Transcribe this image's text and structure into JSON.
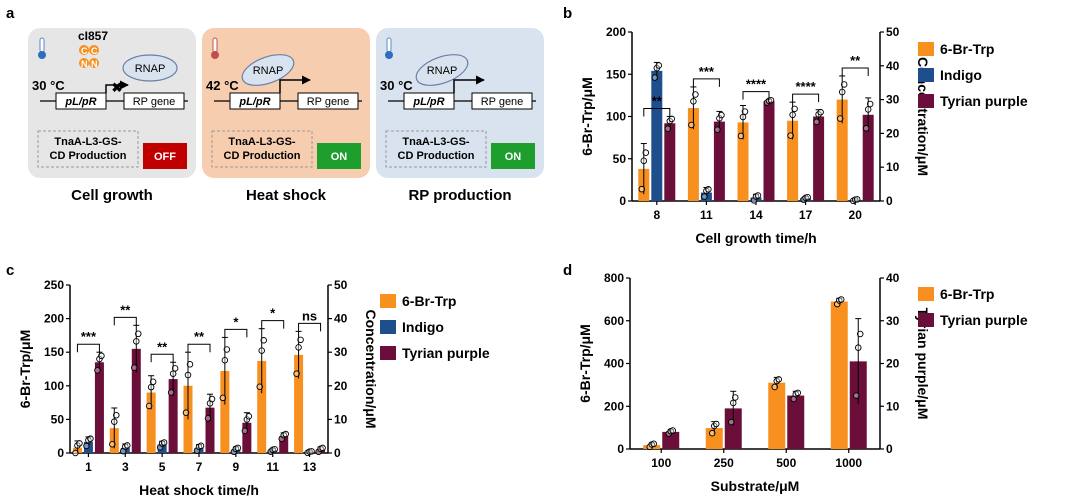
{
  "panel_labels": [
    "a",
    "b",
    "c",
    "d"
  ],
  "colors": {
    "br_trp": "#F7901E",
    "indigo": "#1F4E8C",
    "tyrian": "#6B0F3A",
    "off": "#C00000",
    "on": "#1E9E2C",
    "growth_bg": "#E6E6E6",
    "heat_bg": "#F7CDB0",
    "rp_bg": "#D9E3F0"
  },
  "diagram": {
    "states": [
      {
        "title": "Cell growth",
        "temp": "30 °C",
        "repressor": "cI857",
        "repressor_letters": [
          "C",
          "C",
          "N",
          "N"
        ],
        "rnap": "RNAP",
        "promoter": "pL/pR",
        "gene": "RP gene",
        "production": "TnaA-L3-GS-CD Production",
        "production_line1": "TnaA-L3-GS-",
        "production_line2": "CD Production",
        "switch": "OFF"
      },
      {
        "title": "Heat shock",
        "temp": "42 °C",
        "rnap": "RNAP",
        "promoter": "pL/pR",
        "gene": "RP gene",
        "production": "TnaA-L3-GS-CD Production",
        "production_line1": "TnaA-L3-GS-",
        "production_line2": "CD Production",
        "switch": "ON"
      },
      {
        "title": "RP production",
        "temp": "30 °C",
        "rnap": "RNAP",
        "promoter": "pL/pR",
        "gene": "RP gene",
        "production": "TnaA-L3-GS-CD Production",
        "production_line1": "TnaA-L3-GS-",
        "production_line2": "CD Production",
        "switch": "ON"
      }
    ]
  },
  "chart_data": [
    {
      "panel": "b",
      "type": "bar",
      "categories": [
        "8",
        "11",
        "14",
        "17",
        "20"
      ],
      "xlabel": "Cell growth time/h",
      "ylabel": "6-Br-Trp/μM",
      "y2label": "Concentration/μM",
      "ylim": [
        0,
        200
      ],
      "yticks": [
        0,
        50,
        100,
        150,
        200
      ],
      "y2lim": [
        0,
        50
      ],
      "y2ticks": [
        0,
        10,
        20,
        30,
        40,
        50
      ],
      "series": [
        {
          "name": "6-Br-Trp",
          "axis": "left",
          "values": [
            38,
            110,
            93,
            95,
            120
          ],
          "err": [
            30,
            25,
            20,
            22,
            28
          ]
        },
        {
          "name": "Indigo",
          "axis": "right",
          "values": [
            38.5,
            2.5,
            1,
            0.8,
            0.3
          ],
          "err": [
            2.5,
            1.5,
            1,
            0.5,
            0.3
          ]
        },
        {
          "name": "Tyrian purple",
          "axis": "right",
          "values": [
            23,
            23.5,
            29.5,
            25,
            25.5
          ],
          "err": [
            2,
            3,
            0.5,
            2,
            5
          ]
        }
      ],
      "significance": [
        "**",
        "***",
        "****",
        "****",
        "**"
      ],
      "legend_position": "right"
    },
    {
      "panel": "c",
      "type": "bar",
      "categories": [
        "1",
        "3",
        "5",
        "7",
        "9",
        "11",
        "13"
      ],
      "xlabel": "Heat shock time/h",
      "ylabel": "6-Br-Trp/μM",
      "y2label": "Concentration/μM",
      "ylim": [
        0,
        250
      ],
      "yticks": [
        0,
        50,
        100,
        150,
        200,
        250
      ],
      "y2lim": [
        0,
        50
      ],
      "y2ticks": [
        0,
        10,
        20,
        30,
        40,
        50
      ],
      "series": [
        {
          "name": "6-Br-Trp",
          "axis": "left",
          "values": [
            8,
            37,
            90,
            100,
            122,
            137,
            146
          ],
          "err": [
            10,
            30,
            25,
            50,
            50,
            48,
            35
          ]
        },
        {
          "name": "Indigo",
          "axis": "right",
          "values": [
            3.3,
            1.5,
            2.5,
            1.5,
            1,
            0.8,
            0.3
          ],
          "err": [
            1.5,
            1.2,
            1,
            1,
            0.8,
            0.5,
            0.3
          ]
        },
        {
          "name": "Tyrian purple",
          "axis": "right",
          "values": [
            27,
            31,
            22,
            13.5,
            9,
            5,
            1
          ],
          "err": [
            3,
            7,
            5,
            4,
            3,
            1,
            0.8
          ]
        }
      ],
      "significance": [
        "***",
        "**",
        "**",
        "**",
        "*",
        "*",
        "ns"
      ],
      "legend_position": "right"
    },
    {
      "panel": "d",
      "type": "bar",
      "categories": [
        "100",
        "250",
        "500",
        "1000"
      ],
      "xlabel": "Substrate/μM",
      "ylabel": "6-Br-Trp/μM",
      "y2label": "Tyrian purple/μM",
      "ylim": [
        0,
        800
      ],
      "yticks": [
        0,
        200,
        400,
        600,
        800
      ],
      "y2lim": [
        0,
        40
      ],
      "y2ticks": [
        0,
        10,
        20,
        30,
        40
      ],
      "series": [
        {
          "name": "6-Br-Trp",
          "axis": "left",
          "values": [
            18,
            98,
            310,
            690
          ],
          "err": [
            10,
            30,
            25,
            15
          ]
        },
        {
          "name": "Tyrian purple",
          "axis": "right",
          "values": [
            4,
            9.5,
            12.5,
            20.5
          ],
          "err": [
            0.5,
            4,
            1,
            10
          ]
        }
      ],
      "legend_position": "right"
    }
  ]
}
